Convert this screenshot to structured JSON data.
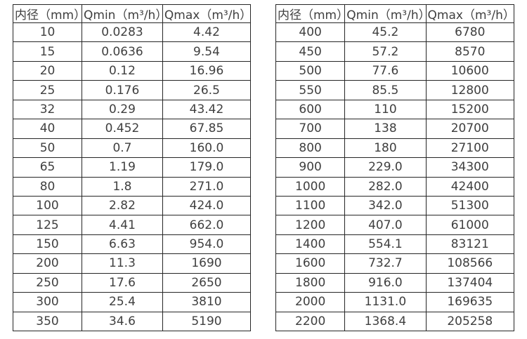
{
  "page": {
    "background": "#ffffff",
    "text_color": "#3f3f3f",
    "border_color": "#262626"
  },
  "tables": [
    {
      "name": "flow-table-small-diameters",
      "headers": [
        "内径（mm）",
        "Qmin（m³/h）",
        "Qmax（m³/h）"
      ],
      "rows": [
        [
          "10",
          "0.0283",
          "4.42"
        ],
        [
          "15",
          "0.0636",
          "9.54"
        ],
        [
          "20",
          "0.12",
          "16.96"
        ],
        [
          "25",
          "0.176",
          "26.5"
        ],
        [
          "32",
          "0.29",
          "43.42"
        ],
        [
          "40",
          "0.452",
          "67.85"
        ],
        [
          "50",
          "0.7",
          "160.0"
        ],
        [
          "65",
          "1.19",
          "179.0"
        ],
        [
          "80",
          "1.8",
          "271.0"
        ],
        [
          "100",
          "2.82",
          "424.0"
        ],
        [
          "125",
          "4.41",
          "662.0"
        ],
        [
          "150",
          "6.63",
          "954.0"
        ],
        [
          "200",
          "11.3",
          "1690"
        ],
        [
          "250",
          "17.6",
          "2650"
        ],
        [
          "300",
          "25.4",
          "3810"
        ],
        [
          "350",
          "34.6",
          "5190"
        ]
      ]
    },
    {
      "name": "flow-table-large-diameters",
      "headers": [
        "内径（mm）",
        "Qmin（m³/h）",
        "Qmax（m³/h）"
      ],
      "rows": [
        [
          "400",
          "45.2",
          "6780"
        ],
        [
          "450",
          "57.2",
          "8570"
        ],
        [
          "500",
          "77.6",
          "10600"
        ],
        [
          "550",
          "85.5",
          "12800"
        ],
        [
          "600",
          "110",
          "15200"
        ],
        [
          "700",
          "138",
          "20700"
        ],
        [
          "800",
          "180",
          "27100"
        ],
        [
          "900",
          "229.0",
          "34300"
        ],
        [
          "1000",
          "282.0",
          "42400"
        ],
        [
          "1100",
          "342.0",
          "51300"
        ],
        [
          "1200",
          "407.0",
          "61000"
        ],
        [
          "1400",
          "554.1",
          "83121"
        ],
        [
          "1600",
          "732.7",
          "108566"
        ],
        [
          "1800",
          "916.0",
          "137404"
        ],
        [
          "2000",
          "1131.0",
          "169635"
        ],
        [
          "2200",
          "1368.4",
          "205258"
        ]
      ]
    }
  ],
  "column_keys": [
    "diameter",
    "qmin",
    "qmax"
  ],
  "column_widths_pct": [
    29,
    34,
    37
  ]
}
